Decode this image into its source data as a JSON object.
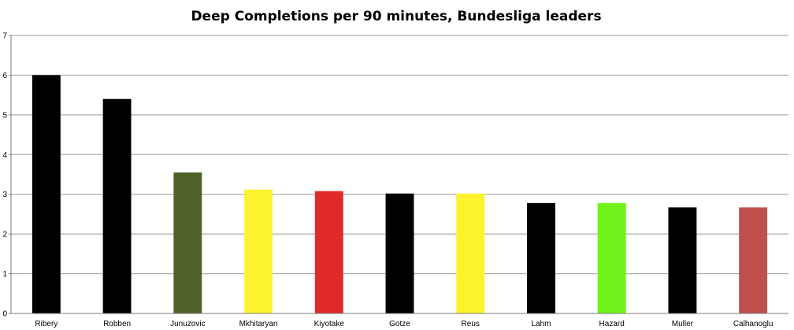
{
  "chart_data": {
    "type": "bar",
    "title": "Deep Completions per 90 minutes, Bundesliga leaders",
    "xlabel": "",
    "ylabel": "",
    "ylim": [
      0,
      7
    ],
    "yticks": [
      "0",
      "1",
      "2",
      "3",
      "4",
      "5",
      "6",
      "7"
    ],
    "grid": true,
    "legend": "none",
    "categories": [
      "Ribery",
      "Robben",
      "Junuzovic",
      "Mkhitaryan",
      "Kiyotake",
      "Gotze",
      "Reus",
      "Lahm",
      "Hazard",
      "Muller",
      "Calhanoglu"
    ],
    "values": [
      6.0,
      5.4,
      3.55,
      3.12,
      3.08,
      3.02,
      3.02,
      2.78,
      2.78,
      2.67,
      2.67
    ],
    "colors": [
      "#000000",
      "#000000",
      "#4e622a",
      "#fcf22e",
      "#e02a29",
      "#000000",
      "#fcf22e",
      "#000000",
      "#70f31b",
      "#000000",
      "#c0504d"
    ]
  }
}
